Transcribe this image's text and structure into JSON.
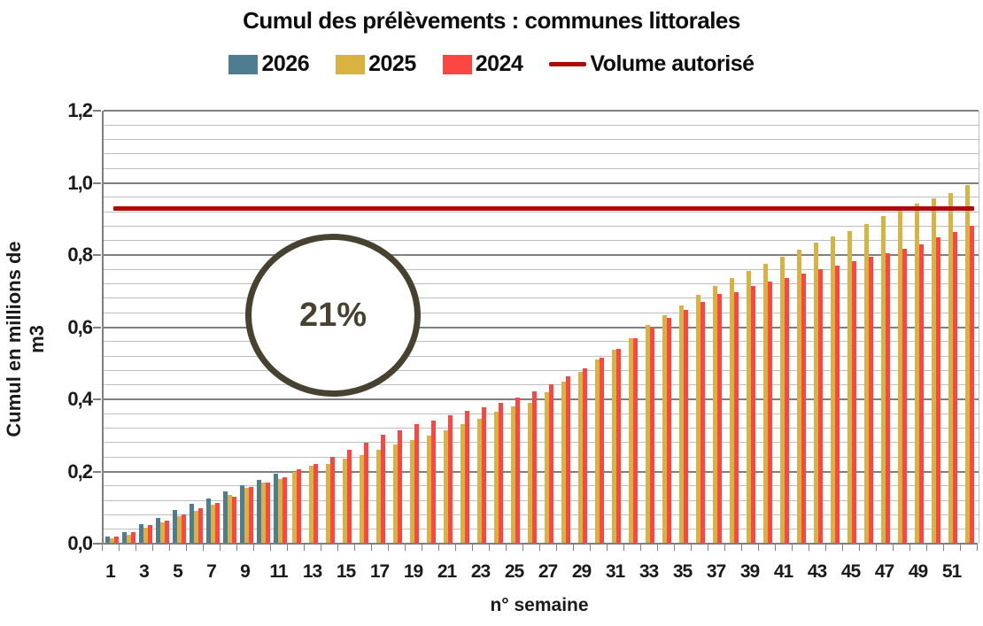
{
  "header": {
    "title": "Cumul des prélèvements : communes littorales"
  },
  "legend": {
    "items": [
      {
        "label": "2026",
        "color": "#4e7d91",
        "type": "swatch"
      },
      {
        "label": "2025",
        "color": "#d9b341",
        "type": "swatch"
      },
      {
        "label": "2024",
        "color": "#fb4642",
        "type": "swatch"
      },
      {
        "label": "Volume autorisé",
        "color": "#b00b0b",
        "type": "line"
      }
    ]
  },
  "annotation": {
    "text": "21%"
  },
  "chart_data": {
    "type": "bar",
    "title": "Cumul des prélèvements : communes littorales",
    "xlabel": "n° semaine",
    "ylabel": "Cumul en millions de m3",
    "ylim": [
      0,
      1.2
    ],
    "y_major_step": 0.2,
    "y_minor_step": 0.04,
    "y_tick_labels": [
      "0,0",
      "0,2",
      "0,4",
      "0,6",
      "0,8",
      "1,0",
      "1,2"
    ],
    "x": [
      1,
      2,
      3,
      4,
      5,
      6,
      7,
      8,
      9,
      10,
      11,
      12,
      13,
      14,
      15,
      16,
      17,
      18,
      19,
      20,
      21,
      22,
      23,
      24,
      25,
      26,
      27,
      28,
      29,
      30,
      31,
      32,
      33,
      34,
      35,
      36,
      37,
      38,
      39,
      40,
      41,
      42,
      43,
      44,
      45,
      46,
      47,
      48,
      49,
      50,
      51,
      52
    ],
    "x_tick_labels": [
      "1",
      "3",
      "5",
      "7",
      "9",
      "11",
      "13",
      "15",
      "17",
      "19",
      "21",
      "23",
      "25",
      "27",
      "29",
      "31",
      "33",
      "35",
      "37",
      "39",
      "41",
      "43",
      "45",
      "47",
      "49",
      "51"
    ],
    "grid": "on",
    "legend_position": "top",
    "series": [
      {
        "name": "2026",
        "color": "#4e7d91",
        "values": [
          0.02,
          0.032,
          0.055,
          0.07,
          0.093,
          0.11,
          0.125,
          0.146,
          0.162,
          0.177,
          0.195
        ]
      },
      {
        "name": "2025",
        "color": "#d9b341",
        "values": [
          0.014,
          0.025,
          0.045,
          0.059,
          0.076,
          0.09,
          0.107,
          0.134,
          0.154,
          0.169,
          0.18,
          0.2,
          0.215,
          0.222,
          0.235,
          0.245,
          0.26,
          0.274,
          0.287,
          0.299,
          0.314,
          0.332,
          0.346,
          0.365,
          0.381,
          0.391,
          0.42,
          0.448,
          0.477,
          0.51,
          0.538,
          0.569,
          0.606,
          0.634,
          0.661,
          0.69,
          0.714,
          0.736,
          0.757,
          0.776,
          0.796,
          0.815,
          0.834,
          0.851,
          0.867,
          0.887,
          0.908,
          0.927,
          0.943,
          0.957,
          0.972,
          0.994
        ]
      },
      {
        "name": "2024",
        "color": "#fb4642",
        "values": [
          0.02,
          0.033,
          0.052,
          0.063,
          0.081,
          0.097,
          0.114,
          0.13,
          0.156,
          0.17,
          0.185,
          0.205,
          0.221,
          0.241,
          0.261,
          0.281,
          0.303,
          0.314,
          0.332,
          0.342,
          0.356,
          0.367,
          0.379,
          0.39,
          0.406,
          0.422,
          0.442,
          0.463,
          0.487,
          0.515,
          0.54,
          0.569,
          0.6,
          0.627,
          0.649,
          0.669,
          0.691,
          0.698,
          0.714,
          0.726,
          0.737,
          0.749,
          0.761,
          0.771,
          0.782,
          0.794,
          0.804,
          0.818,
          0.83,
          0.849,
          0.865,
          0.881
        ]
      }
    ],
    "reference_line": {
      "label": "Volume autorisé",
      "value": 0.93,
      "color": "#b00b0b"
    },
    "annotation": {
      "text": "21%"
    }
  }
}
